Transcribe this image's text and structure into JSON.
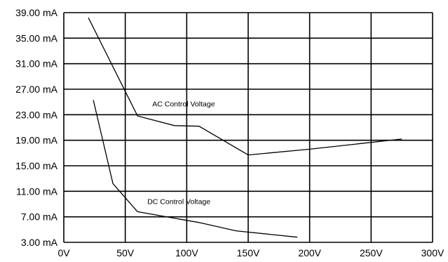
{
  "chart_data": {
    "type": "line",
    "title": "",
    "xlabel": "",
    "ylabel": "",
    "xlim": [
      0,
      300
    ],
    "ylim": [
      3,
      39
    ],
    "grid": true,
    "x_ticks": [
      0,
      50,
      100,
      150,
      200,
      250,
      300
    ],
    "x_tick_labels": [
      "0V",
      "50V",
      "100V",
      "150V",
      "200V",
      "250V",
      "300V"
    ],
    "y_ticks": [
      3,
      7,
      11,
      15,
      19,
      23,
      27,
      31,
      35,
      39
    ],
    "y_tick_labels": [
      "3.00 mA",
      "7.00 mA",
      "11.00 mA",
      "15.00 mA",
      "19.00 mA",
      "23.00 mA",
      "27.00 mA",
      "31.00 mA",
      "35.00 mA",
      "39.00 mA"
    ],
    "series": [
      {
        "name": "AC Control Voltage",
        "label_x": 72,
        "label_y": 24.3,
        "points": [
          [
            20,
            38.2
          ],
          [
            60,
            22.8
          ],
          [
            90,
            21.3
          ],
          [
            110,
            21.2
          ],
          [
            150,
            16.7
          ],
          [
            200,
            17.6
          ],
          [
            275,
            19.2
          ]
        ]
      },
      {
        "name": "DC Control Voltage",
        "label_x": 68,
        "label_y": 9.0,
        "points": [
          [
            24,
            25.3
          ],
          [
            40,
            12.2
          ],
          [
            60,
            7.8
          ],
          [
            110,
            6.1
          ],
          [
            140,
            4.8
          ],
          [
            190,
            3.8
          ]
        ]
      }
    ]
  }
}
